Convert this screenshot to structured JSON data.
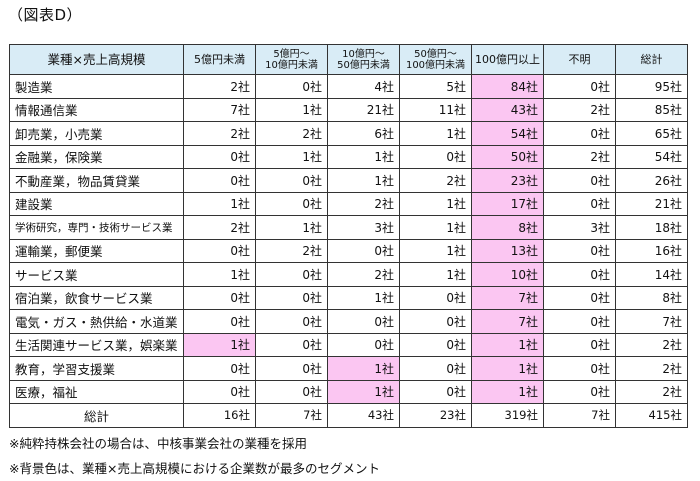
{
  "title": "（図表D）",
  "colors": {
    "header_bg": "#d9ecf6",
    "highlight": "#fbc6f2",
    "border": "#333333"
  },
  "headers": [
    {
      "l1": "業種×売上高規模",
      "l2": ""
    },
    {
      "l1": "5億円未満",
      "l2": ""
    },
    {
      "l1": "5億円～",
      "l2": "10億円未満"
    },
    {
      "l1": "10億円～",
      "l2": "50億円未満"
    },
    {
      "l1": "50億円～",
      "l2": "100億円未満"
    },
    {
      "l1": "100億円以上",
      "l2": ""
    },
    {
      "l1": "不明",
      "l2": ""
    },
    {
      "l1": "総計",
      "l2": ""
    }
  ],
  "rows": [
    {
      "label": "製造業",
      "values": [
        "2社",
        "0社",
        "4社",
        "5社",
        "84社",
        "0社",
        "95社"
      ],
      "highlight": [
        4
      ]
    },
    {
      "label": "情報通信業",
      "values": [
        "7社",
        "1社",
        "21社",
        "11社",
        "43社",
        "2社",
        "85社"
      ],
      "highlight": [
        4
      ]
    },
    {
      "label": "卸売業，小売業",
      "values": [
        "2社",
        "2社",
        "6社",
        "1社",
        "54社",
        "0社",
        "65社"
      ],
      "highlight": [
        4
      ]
    },
    {
      "label": "金融業，保険業",
      "values": [
        "0社",
        "1社",
        "1社",
        "0社",
        "50社",
        "2社",
        "54社"
      ],
      "highlight": [
        4
      ]
    },
    {
      "label": "不動産業，物品賃貸業",
      "values": [
        "0社",
        "0社",
        "1社",
        "2社",
        "23社",
        "0社",
        "26社"
      ],
      "highlight": [
        4
      ]
    },
    {
      "label": "建設業",
      "values": [
        "1社",
        "0社",
        "2社",
        "1社",
        "17社",
        "0社",
        "21社"
      ],
      "highlight": [
        4
      ]
    },
    {
      "label": "学術研究，専門・技術サービス業",
      "values": [
        "2社",
        "1社",
        "3社",
        "1社",
        "8社",
        "3社",
        "18社"
      ],
      "highlight": [
        4
      ],
      "small": true
    },
    {
      "label": "運輸業，郵便業",
      "values": [
        "0社",
        "2社",
        "0社",
        "1社",
        "13社",
        "0社",
        "16社"
      ],
      "highlight": [
        4
      ]
    },
    {
      "label": "サービス業",
      "values": [
        "1社",
        "0社",
        "2社",
        "1社",
        "10社",
        "0社",
        "14社"
      ],
      "highlight": [
        4
      ]
    },
    {
      "label": "宿泊業，飲食サービス業",
      "values": [
        "0社",
        "0社",
        "1社",
        "0社",
        "7社",
        "0社",
        "8社"
      ],
      "highlight": [
        4
      ]
    },
    {
      "label": "電気・ガス・熱供給・水道業",
      "values": [
        "0社",
        "0社",
        "0社",
        "0社",
        "7社",
        "0社",
        "7社"
      ],
      "highlight": [
        4
      ]
    },
    {
      "label": "生活関連サービス業，娯楽業",
      "values": [
        "1社",
        "0社",
        "0社",
        "0社",
        "1社",
        "0社",
        "2社"
      ],
      "highlight": [
        0,
        4
      ]
    },
    {
      "label": "教育，学習支援業",
      "values": [
        "0社",
        "0社",
        "1社",
        "0社",
        "1社",
        "0社",
        "2社"
      ],
      "highlight": [
        2,
        4
      ]
    },
    {
      "label": "医療，福祉",
      "values": [
        "0社",
        "0社",
        "1社",
        "0社",
        "1社",
        "0社",
        "2社"
      ],
      "highlight": [
        2,
        4
      ]
    }
  ],
  "total": {
    "label": "総計",
    "values": [
      "16社",
      "7社",
      "43社",
      "23社",
      "319社",
      "7社",
      "415社"
    ]
  },
  "notes": [
    "※純粋持株会社の場合は、中核事業会社の業種を採用",
    "※背景色は、業種×売上高規模における企業数が最多のセグメント"
  ]
}
